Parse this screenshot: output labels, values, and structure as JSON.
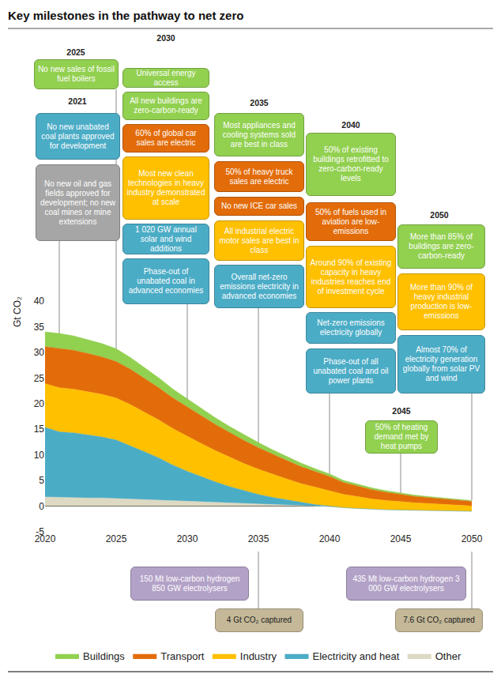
{
  "chart_data": {
    "type": "area",
    "stacked": true,
    "title": "Key milestones in the pathway to net zero",
    "y_label": "Gt CO₂",
    "x": [
      2020,
      2021,
      2022,
      2023,
      2024,
      2025,
      2026,
      2027,
      2028,
      2029,
      2030,
      2031,
      2032,
      2033,
      2034,
      2035,
      2036,
      2037,
      2038,
      2039,
      2040,
      2041,
      2042,
      2043,
      2044,
      2045,
      2046,
      2047,
      2048,
      2049,
      2050
    ],
    "xlim": [
      2020,
      2050
    ],
    "xticks": [
      2020,
      2025,
      2030,
      2035,
      2040,
      2045,
      2050
    ],
    "ylim": [
      -5,
      40
    ],
    "yticks": [
      -5,
      0,
      5,
      10,
      15,
      20,
      25,
      30,
      35,
      40
    ],
    "grid": false,
    "legend": "bottom",
    "series": [
      {
        "name": "Other",
        "color": "#ddd9c3",
        "values": [
          1.8,
          1.7,
          1.7,
          1.6,
          1.6,
          1.5,
          1.4,
          1.3,
          1.2,
          1.0,
          0.9,
          0.8,
          0.7,
          0.6,
          0.5,
          0.4,
          0.3,
          0.2,
          0.1,
          0.0,
          -0.1,
          -0.3,
          -0.45,
          -0.6,
          -0.7,
          -0.75,
          -0.8,
          -0.85,
          -0.9,
          -0.95,
          -1.0
        ]
      },
      {
        "name": "Electricity and heat",
        "color": "#4bacc6",
        "values": [
          13.6,
          12.8,
          12.6,
          12.3,
          11.9,
          11.4,
          10.4,
          9.3,
          8.2,
          7.0,
          5.9,
          4.9,
          4.0,
          3.2,
          2.5,
          1.9,
          1.4,
          1.0,
          0.6,
          0.3,
          0.1,
          0,
          0,
          0,
          0,
          0,
          0,
          0,
          0,
          0,
          0
        ]
      },
      {
        "name": "Industry",
        "color": "#ffc000",
        "values": [
          8.5,
          8.6,
          8.5,
          8.4,
          8.3,
          8.2,
          8.0,
          7.7,
          7.4,
          7.1,
          6.8,
          6.5,
          6.1,
          5.7,
          5.3,
          4.9,
          4.5,
          4.1,
          3.7,
          3.4,
          3.1,
          2.6,
          2.3,
          2.0,
          1.8,
          1.6,
          1.45,
          1.35,
          1.25,
          1.15,
          1.05
        ]
      },
      {
        "name": "Transport",
        "color": "#e36c0a",
        "values": [
          7.2,
          7.7,
          7.6,
          7.5,
          7.3,
          7.1,
          6.9,
          6.6,
          6.3,
          6.0,
          5.7,
          5.4,
          5.1,
          4.8,
          4.5,
          4.2,
          3.9,
          3.6,
          3.3,
          3.0,
          2.7,
          2.3,
          2.0,
          1.8,
          1.6,
          1.4,
          1.25,
          1.15,
          1.05,
          0.95,
          0.9
        ]
      },
      {
        "name": "Buildings",
        "color": "#92d050",
        "values": [
          2.9,
          2.9,
          2.8,
          2.7,
          2.6,
          2.5,
          2.3,
          2.1,
          1.9,
          1.7,
          1.6,
          1.5,
          1.3,
          1.2,
          1.1,
          1.0,
          0.9,
          0.8,
          0.7,
          0.6,
          0.5,
          0.4,
          0.4,
          0.35,
          0.3,
          0.3,
          0.25,
          0.22,
          0.2,
          0.18,
          0.15
        ]
      }
    ],
    "milestones": [
      {
        "year": 2021,
        "items": [
          {
            "text": "No new unabated coal plants approved for development",
            "color": "#4bacc6"
          },
          {
            "text": "No new oil and gas fields approved for development; no new coal mines or mine extensions",
            "color": "#a6a6a6"
          }
        ]
      },
      {
        "year": 2025,
        "items": [
          {
            "text": "No new sales of fossil fuel boilers",
            "color": "#92d050"
          }
        ]
      },
      {
        "year": 2030,
        "items": [
          {
            "text": "Universal energy access",
            "color": "#92d050"
          },
          {
            "text": "All new buildings are zero-carbon-ready",
            "color": "#92d050"
          },
          {
            "text": "60% of global car sales are electric",
            "color": "#e36c0a"
          },
          {
            "text": "Most new clean technologies in heavy industry demonstrated at scale",
            "color": "#ffc000"
          },
          {
            "text": "1 020 GW annual solar and wind additions",
            "color": "#4bacc6"
          },
          {
            "text": "Phase-out of unabated coal in advanced economies",
            "color": "#4bacc6"
          }
        ]
      },
      {
        "year": 2035,
        "items": [
          {
            "text": "Most appliances and cooling systems sold are best in class",
            "color": "#92d050"
          },
          {
            "text": "50% of heavy truck sales are electric",
            "color": "#e36c0a"
          },
          {
            "text": "No new ICE car sales",
            "color": "#e36c0a"
          },
          {
            "text": "All industrial electric motor sales are best in class",
            "color": "#ffc000"
          },
          {
            "text": "Overall net-zero emissions electricity in advanced economies",
            "color": "#4bacc6"
          }
        ]
      },
      {
        "year": 2040,
        "items": [
          {
            "text": "50% of existing buildings retrofitted to zero-carbon-ready levels",
            "color": "#92d050"
          },
          {
            "text": "50% of fuels used in aviation are low-emissions",
            "color": "#e36c0a"
          },
          {
            "text": "Around 90% of existing capacity in heavy industries reaches end of investment cycle",
            "color": "#ffc000"
          },
          {
            "text": "Net-zero emissions electricity globally",
            "color": "#4bacc6"
          },
          {
            "text": "Phase-out of all unabated coal and oil power plants",
            "color": "#4bacc6"
          }
        ]
      },
      {
        "year": 2045,
        "items": [
          {
            "text": "50% of heating demand met by heat pumps",
            "color": "#92d050"
          }
        ]
      },
      {
        "year": 2050,
        "items": [
          {
            "text": "More than 85% of buildings are zero-carbon-ready",
            "color": "#92d050"
          },
          {
            "text": "More than 90% of heavy industrial production is low-emissions",
            "color": "#ffc000"
          },
          {
            "text": "Almost 70% of electricity generation globally from solar PV and wind",
            "color": "#4bacc6"
          }
        ]
      }
    ],
    "bottom_milestones": [
      {
        "year": 2035,
        "items": [
          {
            "text": "150 Mt low-carbon hydrogen 850 GW electrolysers",
            "color": "#b3a2c7"
          },
          {
            "text": "4 Gt CO₂ captured",
            "color": "#c4b898"
          }
        ]
      },
      {
        "year": 2050,
        "items": [
          {
            "text": "435 Mt low-carbon hydrogen 3 000 GW electrolysers",
            "color": "#b3a2c7"
          },
          {
            "text": "7.6 Gt CO₂ captured",
            "color": "#c4b898"
          }
        ]
      }
    ]
  }
}
